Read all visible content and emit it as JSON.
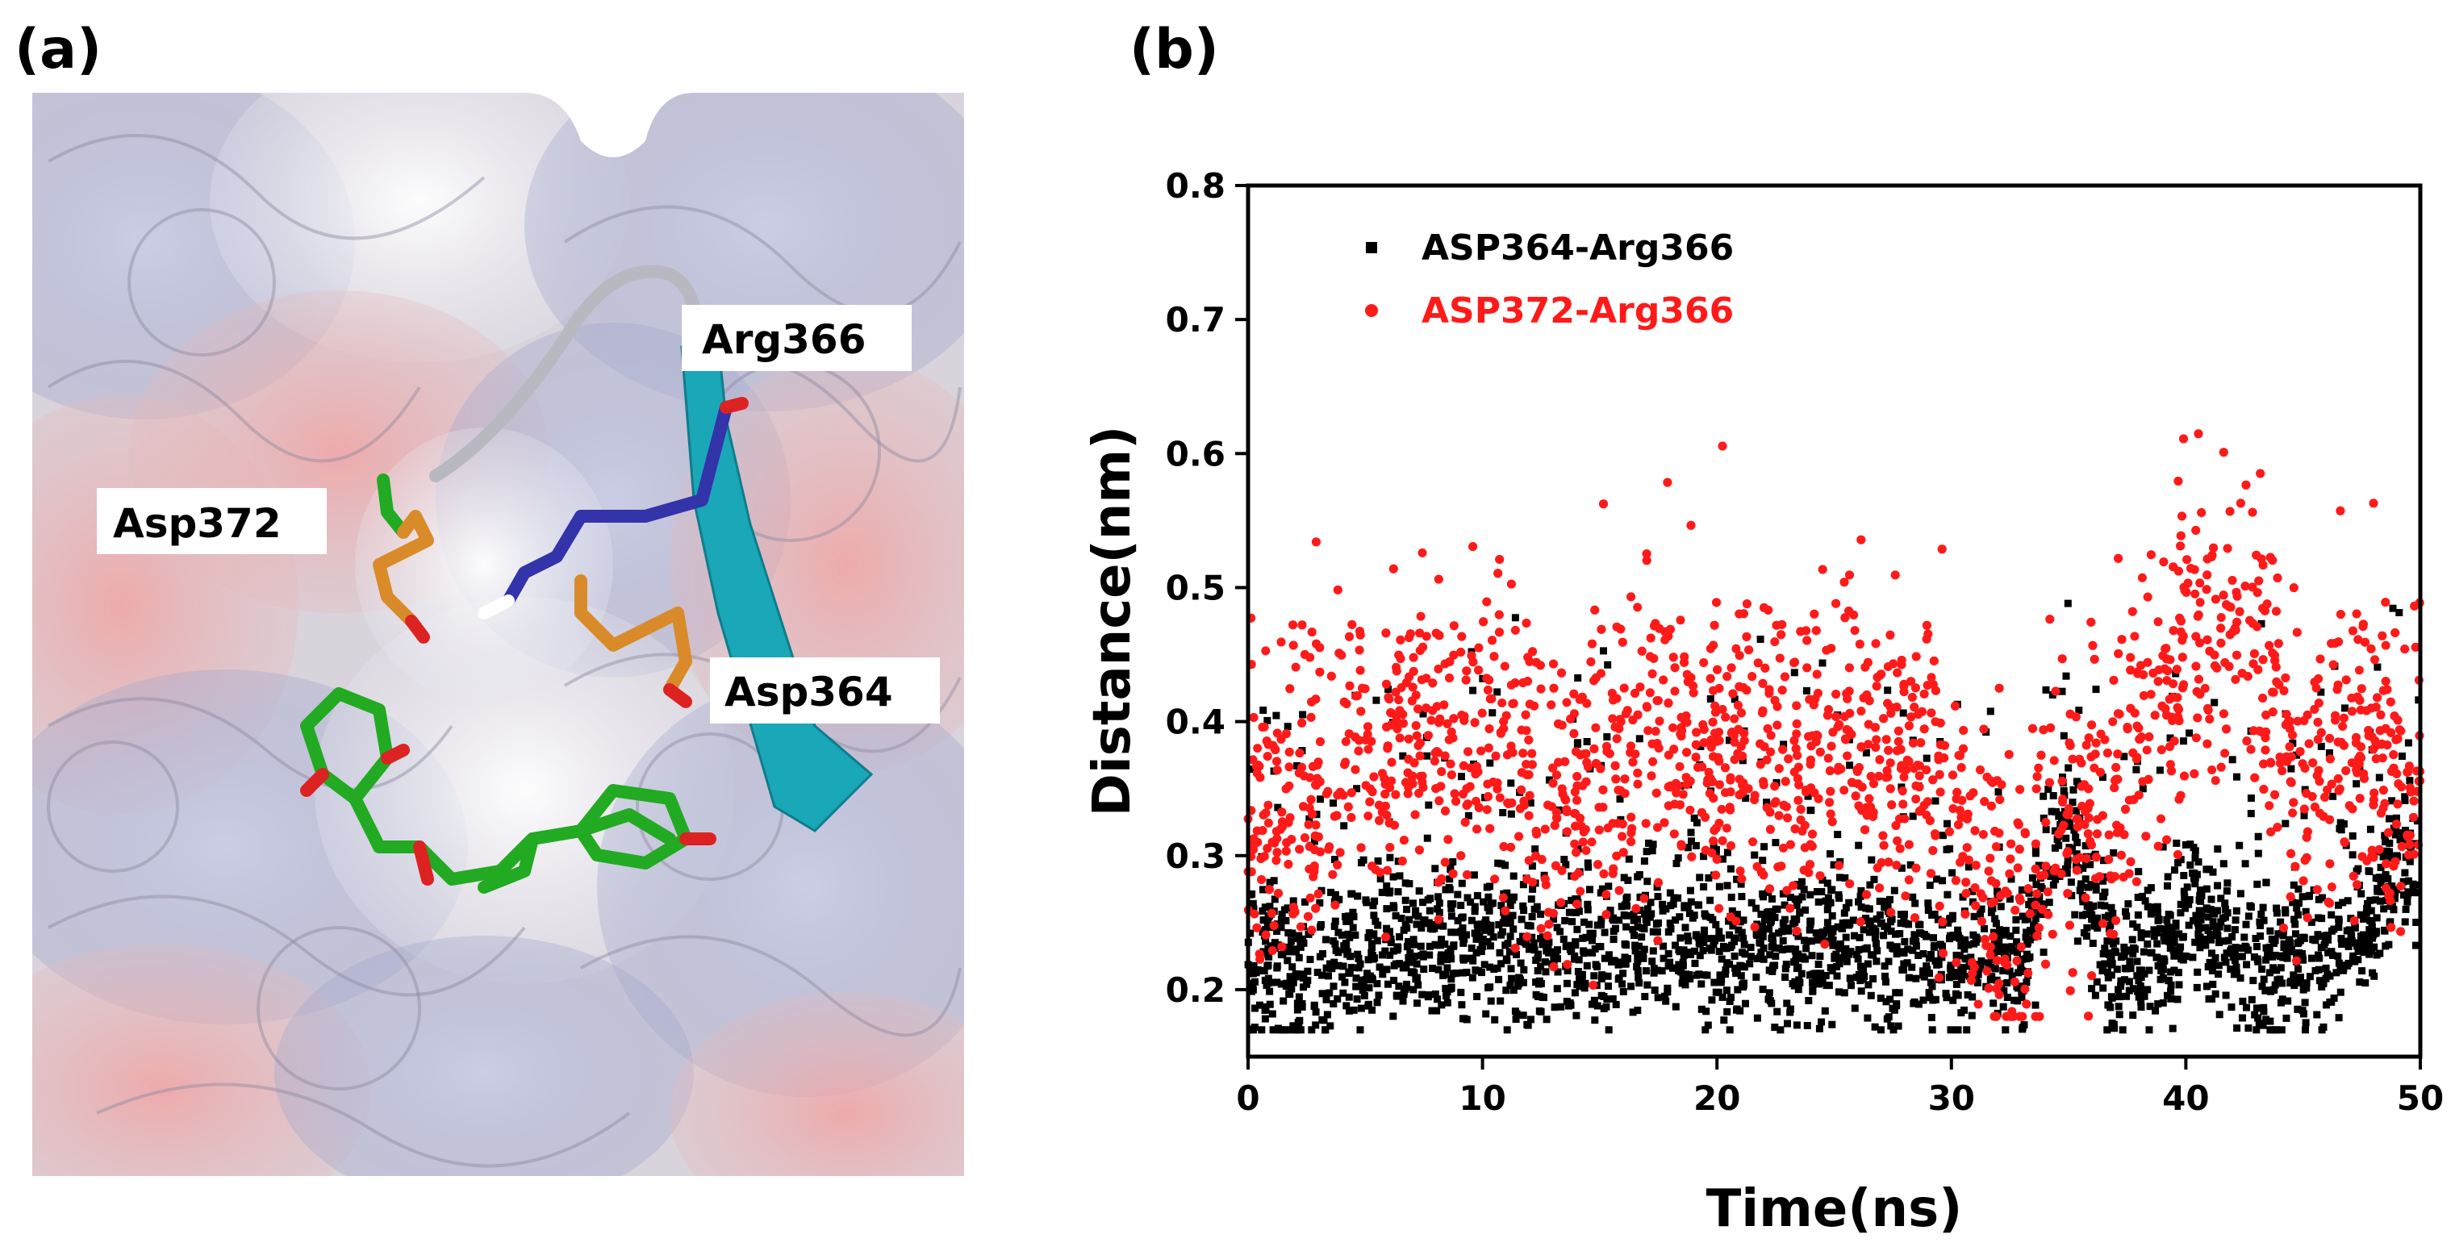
{
  "panels": {
    "a": {
      "label": "(a)",
      "residues": [
        "Arg366",
        "Asp372",
        "Asp364"
      ]
    },
    "b": {
      "label": "(b)"
    }
  },
  "colors": {
    "series1": "#000000",
    "series2": "#ff1a1a",
    "ribbon": "#1aa7b8",
    "arg_stick": "#3333aa",
    "asp_stick": "#d98b2a",
    "ligand": "#22aa22",
    "oxygen": "#dd2222"
  },
  "chart_data": {
    "type": "scatter",
    "title": "",
    "xlabel": "Time(ns)",
    "ylabel": "Distance(nm)",
    "xlim": [
      0,
      50
    ],
    "ylim": [
      0.15,
      0.8
    ],
    "xticks": [
      0,
      10,
      20,
      30,
      40,
      50
    ],
    "yticks": [
      0.2,
      0.3,
      0.4,
      0.5,
      0.6,
      0.7,
      0.8
    ],
    "legend_position": "top-left",
    "series": [
      {
        "name": "ASP364-Arg366",
        "color": "#000000",
        "marker": "square",
        "x": [
          0,
          1,
          2,
          3,
          4,
          5,
          6,
          7,
          8,
          9,
          10,
          11,
          12,
          13,
          14,
          15,
          16,
          17,
          18,
          19,
          20,
          21,
          22,
          23,
          24,
          25,
          26,
          27,
          28,
          29,
          30,
          31,
          32,
          33,
          34,
          35,
          36,
          37,
          38,
          39,
          40,
          41,
          42,
          43,
          44,
          45,
          46,
          47,
          48,
          49,
          50
        ],
        "y": [
          0.22,
          0.23,
          0.21,
          0.22,
          0.23,
          0.22,
          0.24,
          0.23,
          0.24,
          0.23,
          0.23,
          0.24,
          0.23,
          0.23,
          0.24,
          0.23,
          0.23,
          0.24,
          0.24,
          0.25,
          0.23,
          0.23,
          0.24,
          0.23,
          0.23,
          0.24,
          0.24,
          0.23,
          0.23,
          0.22,
          0.23,
          0.22,
          0.23,
          0.22,
          0.3,
          0.32,
          0.26,
          0.22,
          0.22,
          0.23,
          0.26,
          0.24,
          0.23,
          0.22,
          0.22,
          0.22,
          0.22,
          0.24,
          0.25,
          0.3,
          0.3
        ]
      },
      {
        "name": "ASP372-Arg366",
        "color": "#ff1a1a",
        "marker": "circle",
        "x": [
          0,
          1,
          2,
          3,
          4,
          5,
          6,
          7,
          8,
          9,
          10,
          11,
          12,
          13,
          14,
          15,
          16,
          17,
          18,
          19,
          20,
          21,
          22,
          23,
          24,
          25,
          26,
          27,
          28,
          29,
          30,
          31,
          32,
          33,
          34,
          35,
          36,
          37,
          38,
          39,
          40,
          41,
          42,
          43,
          44,
          45,
          46,
          47,
          48,
          49,
          50
        ],
        "y": [
          0.32,
          0.33,
          0.34,
          0.36,
          0.37,
          0.38,
          0.38,
          0.39,
          0.39,
          0.38,
          0.4,
          0.38,
          0.36,
          0.33,
          0.34,
          0.36,
          0.37,
          0.39,
          0.4,
          0.4,
          0.39,
          0.38,
          0.39,
          0.36,
          0.37,
          0.38,
          0.39,
          0.38,
          0.38,
          0.37,
          0.36,
          0.3,
          0.26,
          0.27,
          0.3,
          0.33,
          0.34,
          0.33,
          0.4,
          0.43,
          0.45,
          0.46,
          0.48,
          0.44,
          0.4,
          0.36,
          0.36,
          0.38,
          0.39,
          0.36,
          0.36
        ]
      }
    ]
  }
}
